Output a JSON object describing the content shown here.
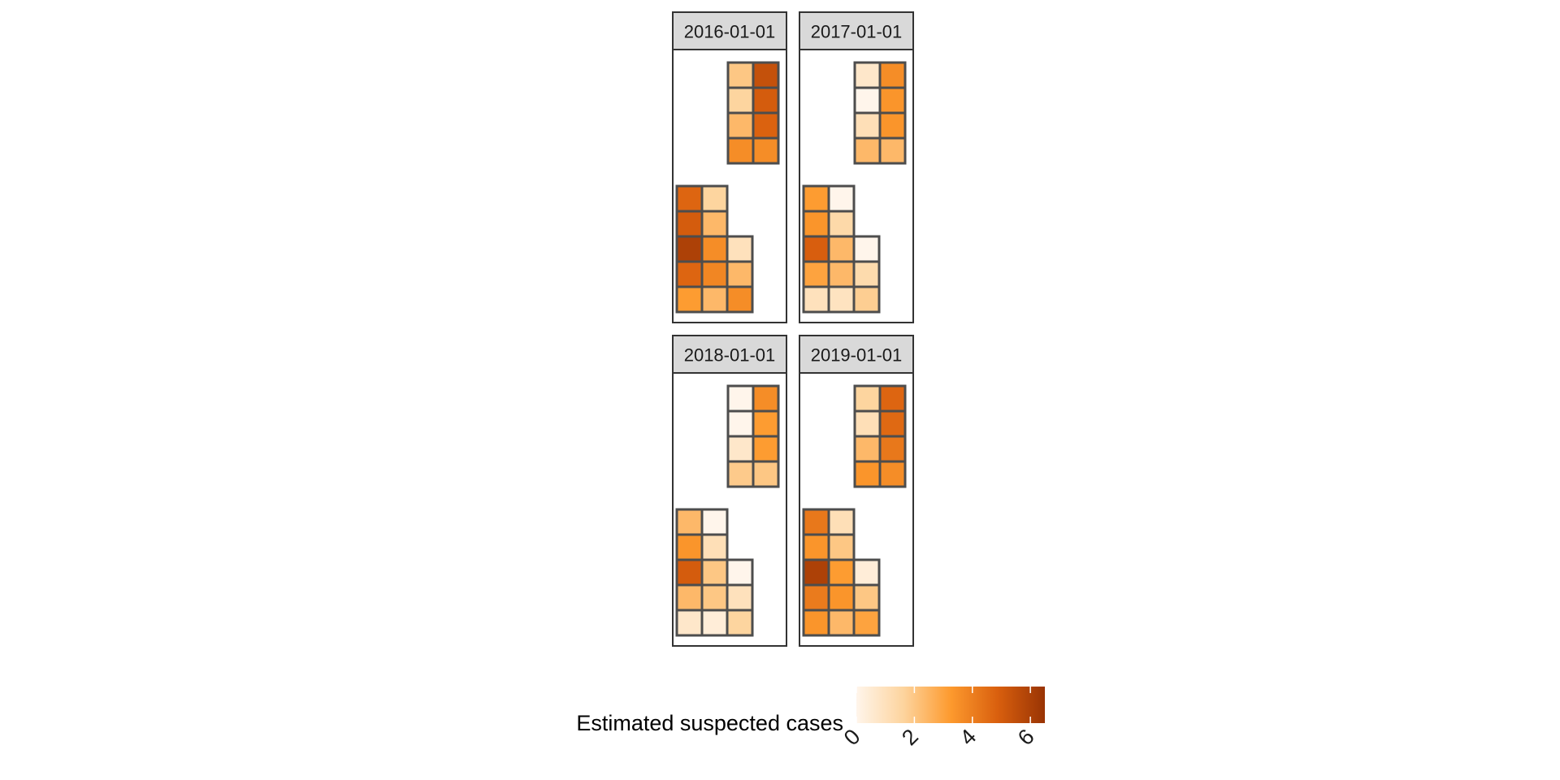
{
  "chart_data": {
    "type": "heatmap",
    "facets": [
      {
        "label": "2016-01-01",
        "upper_block": [
          [
            2.0,
            5.4
          ],
          [
            1.6,
            5.0
          ],
          [
            2.4,
            4.8
          ],
          [
            3.6,
            3.6
          ]
        ],
        "lower_block": [
          [
            4.7,
            1.6
          ],
          [
            5.0,
            2.4
          ],
          [
            6.0,
            3.6,
            1.0
          ],
          [
            4.7,
            3.8,
            2.4
          ],
          [
            3.2,
            2.4,
            3.6
          ]
        ]
      },
      {
        "label": "2017-01-01",
        "upper_block": [
          [
            0.7,
            3.6
          ],
          [
            0.0,
            3.4
          ],
          [
            1.1,
            3.4
          ],
          [
            2.4,
            2.4
          ]
        ],
        "lower_block": [
          [
            3.2,
            0.0
          ],
          [
            3.4,
            1.4
          ],
          [
            4.9,
            2.4,
            0.0
          ],
          [
            3.0,
            2.4,
            1.3
          ],
          [
            1.0,
            0.9,
            1.8
          ]
        ]
      },
      {
        "label": "2018-01-01",
        "upper_block": [
          [
            0.0,
            3.6
          ],
          [
            0.0,
            3.2
          ],
          [
            0.7,
            3.2
          ],
          [
            1.9,
            2.0
          ]
        ],
        "lower_block": [
          [
            2.4,
            0.0
          ],
          [
            3.4,
            1.1
          ],
          [
            5.0,
            2.0,
            0.0
          ],
          [
            2.4,
            2.0,
            1.0
          ],
          [
            0.7,
            0.4,
            1.6
          ]
        ]
      },
      {
        "label": "2019-01-01",
        "upper_block": [
          [
            1.6,
            4.7
          ],
          [
            1.1,
            4.6
          ],
          [
            2.4,
            4.2
          ],
          [
            3.4,
            3.6
          ]
        ],
        "lower_block": [
          [
            4.2,
            1.1
          ],
          [
            3.4,
            2.0
          ],
          [
            6.0,
            3.2,
            0.4
          ],
          [
            4.1,
            3.4,
            2.0
          ],
          [
            3.4,
            2.4,
            3.0
          ]
        ]
      }
    ],
    "legend": {
      "title": "Estimated suspected cases",
      "ticks": [
        "0",
        "2",
        "4",
        "6"
      ],
      "tick_values": [
        0,
        2,
        4,
        6
      ],
      "range": [
        0,
        6.5
      ],
      "colors": [
        "#fff5eb",
        "#fdd49e",
        "#fd9a2e",
        "#d95f0e",
        "#993404"
      ],
      "position": "bottom"
    }
  },
  "colors": {
    "strip_background": "#d9d9d9",
    "panel_border": "#333333",
    "tile_border": "#4d4d4d"
  }
}
